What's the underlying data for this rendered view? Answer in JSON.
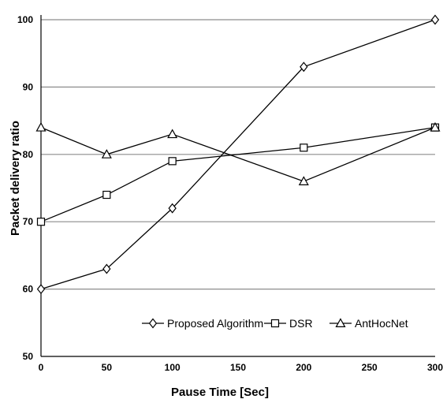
{
  "chart_data": {
    "type": "line",
    "title": "",
    "xlabel": "Pause Time [Sec]",
    "ylabel": "Packet delivery ratio",
    "x": [
      0,
      50,
      100,
      200,
      300
    ],
    "xticks": [
      "0",
      "50",
      "100",
      "150",
      "200",
      "250",
      "300"
    ],
    "xlim": [
      0,
      300
    ],
    "yticks": [
      "50",
      "60",
      "70",
      "80",
      "90",
      "100"
    ],
    "ylim": [
      50,
      100
    ],
    "grid": "horizontal",
    "legend_position": "bottom-inside",
    "series": [
      {
        "name": "Proposed Algorithm",
        "marker": "diamond",
        "values": [
          60,
          63,
          72,
          93,
          100
        ]
      },
      {
        "name": "DSR",
        "marker": "square",
        "values": [
          70,
          74,
          79,
          81,
          84
        ]
      },
      {
        "name": "AntHocNet",
        "marker": "triangle",
        "values": [
          84,
          80,
          83,
          76,
          84
        ]
      }
    ],
    "colors": {
      "line": "#000000",
      "grid": "#8c8c8c",
      "marker_fill": "#ffffff"
    }
  }
}
